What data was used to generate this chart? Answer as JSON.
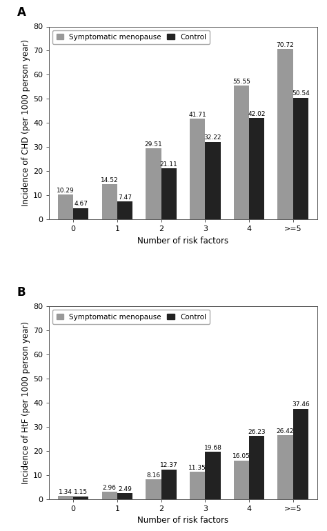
{
  "panel_A": {
    "categories": [
      "0",
      "1",
      "2",
      "3",
      "4",
      ">=5"
    ],
    "symptomatic": [
      10.29,
      14.52,
      29.51,
      41.71,
      55.55,
      70.72
    ],
    "control": [
      4.67,
      7.47,
      21.11,
      32.22,
      42.02,
      50.54
    ],
    "ylabel": "Incidence of CHD (per 1000 person year)",
    "xlabel": "Number of risk factors",
    "ylim": [
      0,
      80
    ],
    "yticks": [
      0,
      10,
      20,
      30,
      40,
      50,
      60,
      70,
      80
    ],
    "label": "A"
  },
  "panel_B": {
    "categories": [
      "0",
      "1",
      "2",
      "3",
      "4",
      ">=5"
    ],
    "symptomatic": [
      1.34,
      2.96,
      8.16,
      11.35,
      16.05,
      26.42
    ],
    "control": [
      1.15,
      2.49,
      12.37,
      19.68,
      26.23,
      37.46
    ],
    "ylabel": "Incidence of HtF (per 1000 person year)",
    "xlabel": "Number of risk factors",
    "ylim": [
      0,
      80
    ],
    "yticks": [
      0,
      10,
      20,
      30,
      40,
      50,
      60,
      70,
      80
    ],
    "label": "B"
  },
  "color_symptomatic": "#999999",
  "color_control": "#222222",
  "legend_symptomatic": "Symptomatic menopause",
  "legend_control": "Control",
  "bar_width": 0.35,
  "annotation_fontsize": 6.5,
  "tick_fontsize": 8,
  "label_fontsize": 8.5,
  "legend_fontsize": 7.5,
  "figure_bgcolor": "#ffffff",
  "axes_bgcolor": "#ffffff"
}
